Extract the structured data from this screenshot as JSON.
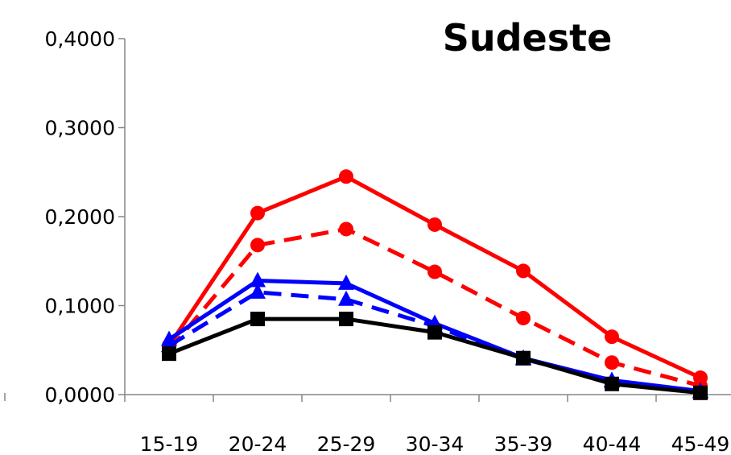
{
  "chart_data": {
    "type": "line",
    "title": "Sudeste",
    "xlabel": "",
    "ylabel": "",
    "categories": [
      "15-19",
      "20-24",
      "25-29",
      "30-34",
      "35-39",
      "40-44",
      "45-49"
    ],
    "ylim": [
      0,
      0.4
    ],
    "yticks": [
      0,
      0.1,
      0.2,
      0.3,
      0.4
    ],
    "ytick_labels": [
      "0,0000",
      "0,1000",
      "0,2000",
      "0,3000",
      "0,4000"
    ],
    "grid": false,
    "legend": "none",
    "series": [
      {
        "color": "#ff0000",
        "line_style": "solid",
        "marker": "circle",
        "values": [
          0.055,
          0.204,
          0.245,
          0.191,
          0.139,
          0.065,
          0.019
        ]
      },
      {
        "color": "#ff0000",
        "line_style": "dashed",
        "marker": "circle",
        "values": [
          0.05,
          0.168,
          0.186,
          0.138,
          0.086,
          0.036,
          0.01
        ]
      },
      {
        "color": "#0000ff",
        "line_style": "solid",
        "marker": "triangle",
        "values": [
          0.062,
          0.128,
          0.125,
          0.08,
          0.041,
          0.016,
          0.004
        ]
      },
      {
        "color": "#0000ff",
        "line_style": "dashed",
        "marker": "triangle",
        "values": [
          0.055,
          0.115,
          0.107,
          0.077,
          0.04,
          0.015,
          0.003
        ]
      },
      {
        "color": "#000000",
        "line_style": "solid",
        "marker": "square",
        "values": [
          0.046,
          0.085,
          0.085,
          0.07,
          0.041,
          0.012,
          0.002
        ]
      }
    ]
  }
}
